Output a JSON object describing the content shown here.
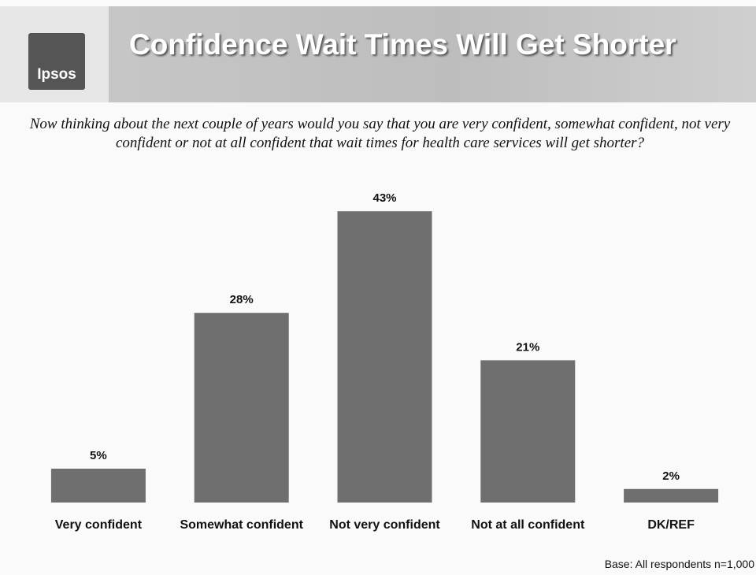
{
  "logo": "Ipsos",
  "footnote": "Base: All respondents n=1,000",
  "chart_data": {
    "type": "bar",
    "title": "Confidence Wait Times Will Get Shorter",
    "subtitle": "Now thinking about the next couple of years would you say that you are very confident, somewhat confident, not very confident or not at all confident that wait times for health care services will get shorter?",
    "categories": [
      "Very confident",
      "Somewhat confident",
      "Not very confident",
      "Not at all confident",
      "DK/REF"
    ],
    "values": [
      5,
      28,
      43,
      21,
      2
    ],
    "value_labels": [
      "5%",
      "28%",
      "43%",
      "21%",
      "2%"
    ],
    "color": "#6f6f6f"
  }
}
